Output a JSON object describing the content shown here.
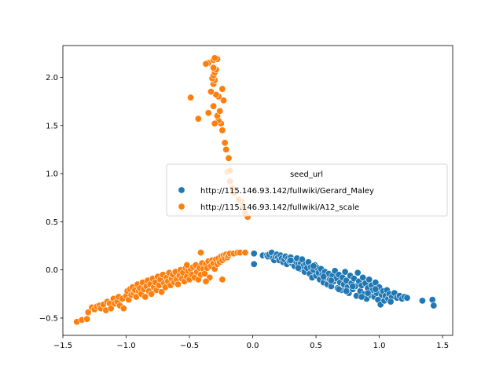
{
  "chart_data": {
    "type": "scatter",
    "legend": {
      "title": "seed_url",
      "placement": "center-right"
    },
    "xlim": [
      -1.5,
      1.58
    ],
    "ylim": [
      -0.68,
      2.33
    ],
    "xticks": [
      "−1.5",
      "−1.0",
      "−0.5",
      "0.0",
      "0.5",
      "1.0",
      "1.5"
    ],
    "yticks": [
      "−0.5",
      "0.0",
      "0.5",
      "1.0",
      "1.5",
      "2.0"
    ],
    "xtick_values": [
      -1.5,
      -1.0,
      -0.5,
      0.0,
      0.5,
      1.0,
      1.5
    ],
    "ytick_values": [
      -0.5,
      0.0,
      0.5,
      1.0,
      1.5,
      2.0
    ],
    "grid": false,
    "series": [
      {
        "name": "http://115.146.93.142/fullwiki/Gerard_Maley",
        "color": "#1f77b4",
        "points": [
          [
            0.01,
            0.17
          ],
          [
            0.01,
            0.06
          ],
          [
            0.08,
            0.15
          ],
          [
            0.11,
            0.15
          ],
          [
            0.12,
            0.14
          ],
          [
            0.13,
            0.16
          ],
          [
            0.15,
            0.18
          ],
          [
            0.16,
            0.12
          ],
          [
            0.17,
            0.1
          ],
          [
            0.18,
            0.14
          ],
          [
            0.19,
            0.16
          ],
          [
            0.2,
            0.13
          ],
          [
            0.21,
            0.1
          ],
          [
            0.22,
            0.15
          ],
          [
            0.23,
            0.12
          ],
          [
            0.24,
            0.08
          ],
          [
            0.25,
            0.11
          ],
          [
            0.26,
            0.14
          ],
          [
            0.27,
            0.06
          ],
          [
            0.28,
            0.12
          ],
          [
            0.29,
            0.09
          ],
          [
            0.3,
            0.13
          ],
          [
            0.31,
            0.07
          ],
          [
            0.32,
            0.1
          ],
          [
            0.33,
            0.04
          ],
          [
            0.34,
            0.09
          ],
          [
            0.35,
            0.12
          ],
          [
            0.36,
            0.06
          ],
          [
            0.37,
            0.01
          ],
          [
            0.38,
            0.07
          ],
          [
            0.39,
            0.11
          ],
          [
            0.4,
            0.04
          ],
          [
            0.41,
            -0.02
          ],
          [
            0.42,
            0.06
          ],
          [
            0.43,
            0.02
          ],
          [
            0.44,
            0.08
          ],
          [
            0.45,
            -0.04
          ],
          [
            0.46,
            0.03
          ],
          [
            0.47,
            -0.08
          ],
          [
            0.48,
            0.0
          ],
          [
            0.49,
            0.05
          ],
          [
            0.5,
            -0.06
          ],
          [
            0.51,
            0.02
          ],
          [
            0.52,
            -0.03
          ],
          [
            0.53,
            -0.1
          ],
          [
            0.54,
            0.01
          ],
          [
            0.55,
            -0.05
          ],
          [
            0.56,
            -0.13
          ],
          [
            0.57,
            -0.02
          ],
          [
            0.58,
            -0.08
          ],
          [
            0.59,
            -0.15
          ],
          [
            0.6,
            -0.04
          ],
          [
            0.61,
            -0.1
          ],
          [
            0.62,
            -0.17
          ],
          [
            0.63,
            -0.06
          ],
          [
            0.64,
            -0.12
          ],
          [
            0.65,
            -0.01
          ],
          [
            0.66,
            -0.09
          ],
          [
            0.67,
            -0.19
          ],
          [
            0.68,
            -0.05
          ],
          [
            0.69,
            -0.13
          ],
          [
            0.7,
            -0.21
          ],
          [
            0.71,
            -0.08
          ],
          [
            0.72,
            -0.15
          ],
          [
            0.73,
            -0.02
          ],
          [
            0.74,
            -0.11
          ],
          [
            0.75,
            -0.18
          ],
          [
            0.76,
            -0.24
          ],
          [
            0.77,
            -0.06
          ],
          [
            0.78,
            -0.14
          ],
          [
            0.79,
            -0.2
          ],
          [
            0.8,
            -0.09
          ],
          [
            0.81,
            -0.17
          ],
          [
            0.82,
            -0.27
          ],
          [
            0.83,
            -0.03
          ],
          [
            0.84,
            -0.12
          ],
          [
            0.85,
            -0.22
          ],
          [
            0.86,
            -0.16
          ],
          [
            0.87,
            -0.08
          ],
          [
            0.88,
            -0.25
          ],
          [
            0.89,
            -0.14
          ],
          [
            0.9,
            -0.3
          ],
          [
            0.91,
            -0.19
          ],
          [
            0.92,
            -0.1
          ],
          [
            0.93,
            -0.26
          ],
          [
            0.94,
            -0.16
          ],
          [
            0.95,
            -0.21
          ],
          [
            0.96,
            -0.28
          ],
          [
            0.97,
            -0.13
          ],
          [
            0.98,
            -0.24
          ],
          [
            0.99,
            -0.31
          ],
          [
            1.0,
            -0.18
          ],
          [
            1.01,
            -0.36
          ],
          [
            1.02,
            -0.26
          ],
          [
            1.03,
            -0.22
          ],
          [
            1.04,
            -0.32
          ],
          [
            1.05,
            -0.27
          ],
          [
            1.06,
            -0.21
          ],
          [
            1.07,
            -0.3
          ],
          [
            1.08,
            -0.25
          ],
          [
            1.1,
            -0.28
          ],
          [
            1.12,
            -0.24
          ],
          [
            1.14,
            -0.29
          ],
          [
            1.16,
            -0.27
          ],
          [
            1.18,
            -0.3
          ],
          [
            1.2,
            -0.28
          ],
          [
            1.22,
            -0.29
          ],
          [
            1.34,
            -0.32
          ],
          [
            1.42,
            -0.31
          ],
          [
            1.43,
            -0.37
          ],
          [
            0.68,
            -0.2
          ],
          [
            0.74,
            -0.22
          ],
          [
            0.86,
            -0.28
          ],
          [
            0.91,
            -0.24
          ],
          [
            0.56,
            -0.07
          ],
          [
            0.48,
            0.04
          ],
          [
            0.36,
            0.02
          ],
          [
            0.3,
            0.1
          ],
          [
            0.62,
            -0.11
          ],
          [
            0.79,
            -0.17
          ],
          [
            0.97,
            -0.2
          ],
          [
            1.09,
            -0.33
          ]
        ]
      },
      {
        "name": "http://115.146.93.142/fullwiki/A12_scale",
        "color": "#ff7f0e",
        "points": [
          [
            -1.39,
            -0.54
          ],
          [
            -1.35,
            -0.52
          ],
          [
            -1.31,
            -0.51
          ],
          [
            -1.3,
            -0.44
          ],
          [
            -1.27,
            -0.39
          ],
          [
            -1.25,
            -0.41
          ],
          [
            -1.23,
            -0.38
          ],
          [
            -1.21,
            -0.37
          ],
          [
            -1.2,
            -0.4
          ],
          [
            -1.18,
            -0.36
          ],
          [
            -1.16,
            -0.42
          ],
          [
            -1.15,
            -0.33
          ],
          [
            -1.13,
            -0.35
          ],
          [
            -1.12,
            -0.4
          ],
          [
            -1.1,
            -0.3
          ],
          [
            -1.09,
            -0.35
          ],
          [
            -1.07,
            -0.33
          ],
          [
            -1.06,
            -0.28
          ],
          [
            -1.05,
            -0.37
          ],
          [
            -1.03,
            -0.3
          ],
          [
            -1.02,
            -0.4
          ],
          [
            -1.0,
            -0.27
          ],
          [
            -0.99,
            -0.22
          ],
          [
            -0.98,
            -0.31
          ],
          [
            -0.97,
            -0.2
          ],
          [
            -0.96,
            -0.26
          ],
          [
            -0.95,
            -0.18
          ],
          [
            -0.94,
            -0.24
          ],
          [
            -0.93,
            -0.21
          ],
          [
            -0.92,
            -0.28
          ],
          [
            -0.91,
            -0.15
          ],
          [
            -0.9,
            -0.22
          ],
          [
            -0.89,
            -0.19
          ],
          [
            -0.88,
            -0.25
          ],
          [
            -0.87,
            -0.13
          ],
          [
            -0.86,
            -0.2
          ],
          [
            -0.85,
            -0.28
          ],
          [
            -0.84,
            -0.17
          ],
          [
            -0.83,
            -0.11
          ],
          [
            -0.82,
            -0.22
          ],
          [
            -0.81,
            -0.15
          ],
          [
            -0.8,
            -0.25
          ],
          [
            -0.79,
            -0.09
          ],
          [
            -0.78,
            -0.18
          ],
          [
            -0.77,
            -0.13
          ],
          [
            -0.76,
            -0.21
          ],
          [
            -0.75,
            -0.07
          ],
          [
            -0.74,
            -0.16
          ],
          [
            -0.73,
            -0.1
          ],
          [
            -0.72,
            -0.23
          ],
          [
            -0.71,
            -0.05
          ],
          [
            -0.7,
            -0.14
          ],
          [
            -0.69,
            -0.18
          ],
          [
            -0.68,
            -0.08
          ],
          [
            -0.67,
            -0.12
          ],
          [
            -0.66,
            -0.03
          ],
          [
            -0.65,
            -0.16
          ],
          [
            -0.64,
            -0.09
          ],
          [
            -0.63,
            -0.05
          ],
          [
            -0.62,
            -0.13
          ],
          [
            -0.61,
            -0.02
          ],
          [
            -0.6,
            -0.1
          ],
          [
            -0.59,
            -0.15
          ],
          [
            -0.58,
            -0.06
          ],
          [
            -0.57,
            0.0
          ],
          [
            -0.56,
            -0.09
          ],
          [
            -0.55,
            -0.03
          ],
          [
            -0.54,
            -0.12
          ],
          [
            -0.53,
            0.02
          ],
          [
            -0.52,
            -0.07
          ],
          [
            -0.51,
            -0.01
          ],
          [
            -0.5,
            -0.1
          ],
          [
            -0.49,
            0.01
          ],
          [
            -0.48,
            -0.05
          ],
          [
            -0.47,
            0.03
          ],
          [
            -0.46,
            -0.08
          ],
          [
            -0.45,
            0.05
          ],
          [
            -0.44,
            -0.02
          ],
          [
            -0.43,
            -0.1
          ],
          [
            -0.42,
            0.02
          ],
          [
            -0.41,
            -0.05
          ],
          [
            -0.4,
            0.07
          ],
          [
            -0.39,
            0.01
          ],
          [
            -0.38,
            -0.04
          ],
          [
            -0.37,
            0.06
          ],
          [
            -0.36,
            0.02
          ],
          [
            -0.35,
            0.09
          ],
          [
            -0.34,
            -0.08
          ],
          [
            -0.33,
            0.04
          ],
          [
            -0.32,
            0.1
          ],
          [
            -0.31,
            0.07
          ],
          [
            -0.3,
            0.01
          ],
          [
            -0.29,
            0.11
          ],
          [
            -0.28,
            0.06
          ],
          [
            -0.27,
            0.12
          ],
          [
            -0.26,
            0.08
          ],
          [
            -0.25,
            0.14
          ],
          [
            -0.24,
            0.1
          ],
          [
            -0.23,
            0.15
          ],
          [
            -0.22,
            0.12
          ],
          [
            -0.21,
            0.16
          ],
          [
            -0.2,
            0.13
          ],
          [
            -0.19,
            0.15
          ],
          [
            -0.18,
            0.17
          ],
          [
            -0.15,
            0.17
          ],
          [
            -0.12,
            0.18
          ],
          [
            -0.1,
            0.18
          ],
          [
            -0.06,
            0.18
          ],
          [
            -0.41,
            0.18
          ],
          [
            -0.52,
            0.05
          ],
          [
            -0.24,
            -0.1
          ],
          [
            -0.37,
            -0.12
          ],
          [
            -0.04,
            0.55
          ],
          [
            -0.06,
            0.59
          ],
          [
            -0.08,
            0.65
          ],
          [
            -0.09,
            0.71
          ],
          [
            -0.11,
            0.73
          ],
          [
            -0.15,
            0.8
          ],
          [
            -0.16,
            0.85
          ],
          [
            -0.18,
            0.92
          ],
          [
            -0.2,
            1.02
          ],
          [
            -0.18,
            1.03
          ],
          [
            -0.19,
            1.16
          ],
          [
            -0.21,
            1.25
          ],
          [
            -0.22,
            1.32
          ],
          [
            -0.24,
            1.45
          ],
          [
            -0.25,
            1.52
          ],
          [
            -0.27,
            1.55
          ],
          [
            -0.28,
            1.6
          ],
          [
            -0.26,
            1.65
          ],
          [
            -0.3,
            1.52
          ],
          [
            -0.35,
            1.63
          ],
          [
            -0.43,
            1.57
          ],
          [
            -0.49,
            1.79
          ],
          [
            -0.31,
            1.7
          ],
          [
            -0.23,
            1.76
          ],
          [
            -0.27,
            1.8
          ],
          [
            -0.29,
            1.82
          ],
          [
            -0.33,
            1.85
          ],
          [
            -0.24,
            1.88
          ],
          [
            -0.31,
            1.93
          ],
          [
            -0.3,
            1.97
          ],
          [
            -0.32,
            1.99
          ],
          [
            -0.31,
            2.02
          ],
          [
            -0.3,
            2.05
          ],
          [
            -0.29,
            2.08
          ],
          [
            -0.31,
            2.1
          ],
          [
            -0.35,
            2.15
          ],
          [
            -0.37,
            2.14
          ],
          [
            -0.31,
            2.18
          ],
          [
            -0.28,
            2.19
          ],
          [
            -0.3,
            2.2
          ]
        ]
      }
    ]
  }
}
